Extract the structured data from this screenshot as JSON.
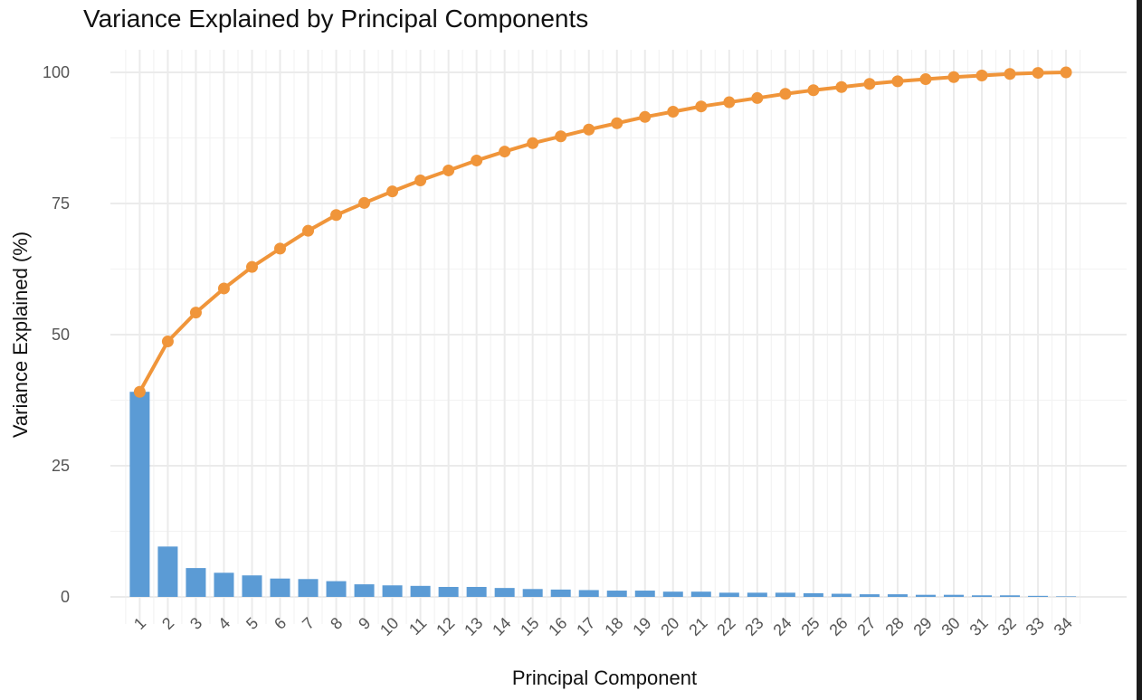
{
  "chart_data": {
    "type": "bar",
    "title": "Variance Explained by Principal Components",
    "xlabel": "Principal Component",
    "ylabel": "Variance Explained (%)",
    "categories": [
      "1",
      "2",
      "3",
      "4",
      "5",
      "6",
      "7",
      "8",
      "9",
      "10",
      "11",
      "12",
      "13",
      "14",
      "15",
      "16",
      "17",
      "18",
      "19",
      "20",
      "21",
      "22",
      "23",
      "24",
      "25",
      "26",
      "27",
      "28",
      "29",
      "30",
      "31",
      "32",
      "33",
      "34"
    ],
    "series": [
      {
        "type": "bar",
        "values": [
          39.1,
          9.6,
          5.5,
          4.6,
          4.1,
          3.5,
          3.4,
          3.0,
          2.4,
          2.2,
          2.1,
          1.9,
          1.9,
          1.7,
          1.5,
          1.4,
          1.3,
          1.2,
          1.2,
          1.0,
          1.0,
          0.8,
          0.8,
          0.8,
          0.7,
          0.6,
          0.5,
          0.5,
          0.4,
          0.4,
          0.3,
          0.3,
          0.2,
          0.1
        ],
        "color": "#5b9bd5"
      },
      {
        "type": "line",
        "values": [
          39.1,
          48.7,
          54.2,
          58.8,
          62.9,
          66.4,
          69.8,
          72.8,
          75.1,
          77.3,
          79.4,
          81.3,
          83.2,
          84.9,
          86.5,
          87.8,
          89.1,
          90.3,
          91.5,
          92.5,
          93.5,
          94.3,
          95.1,
          95.9,
          96.6,
          97.2,
          97.8,
          98.3,
          98.7,
          99.1,
          99.4,
          99.7,
          99.9,
          100.0
        ],
        "color": "#f0953a"
      }
    ],
    "ylim": [
      0,
      100
    ],
    "yticks": [
      0,
      25,
      50,
      75,
      100
    ],
    "grid": true,
    "legend": "none",
    "colors": {
      "background": "#ffffff",
      "grid_major": "#ebebeb",
      "grid_minor": "#f3f3f3",
      "bar": "#5b9bd5",
      "line": "#f0953a"
    }
  }
}
